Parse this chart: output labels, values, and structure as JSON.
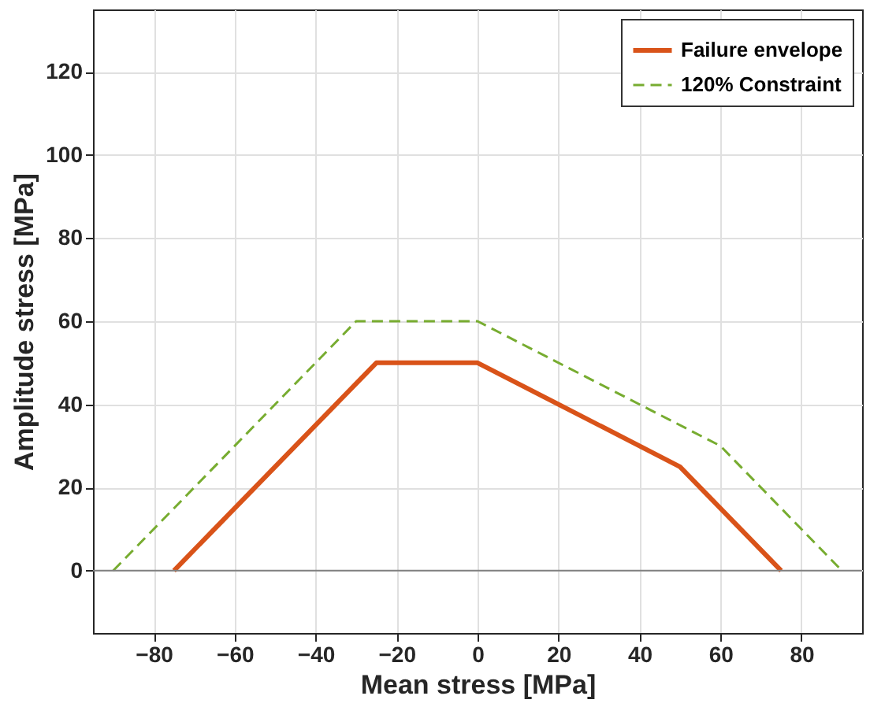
{
  "chart_data": {
    "type": "line",
    "xlabel": "Mean stress [MPa]",
    "ylabel": "Amplitude stress [MPa]",
    "xlim": [
      -95,
      95
    ],
    "xticks": [
      -80,
      -60,
      -40,
      -20,
      0,
      20,
      40,
      60,
      80
    ],
    "ylim": [
      -15,
      135
    ],
    "yticks": [
      0,
      20,
      40,
      60,
      80,
      100,
      120
    ],
    "grid": true,
    "legend": "top right",
    "marker": "none",
    "series": [
      {
        "name": "Failure envelope",
        "color": "#d95319",
        "line_style": "solid",
        "x": [
          -75,
          -25,
          0,
          50,
          75
        ],
        "values": [
          0,
          50,
          50,
          25,
          0
        ]
      },
      {
        "name": "120% Constraint",
        "color": "#77ac30",
        "line_style": "dashed",
        "x": [
          -90,
          -30,
          0,
          60,
          90
        ],
        "values": [
          0,
          60,
          60,
          30,
          0
        ]
      }
    ],
    "ref_lines": [
      {
        "axis": "y",
        "value": 0,
        "color": "#808080",
        "line_style": "solid"
      }
    ]
  }
}
